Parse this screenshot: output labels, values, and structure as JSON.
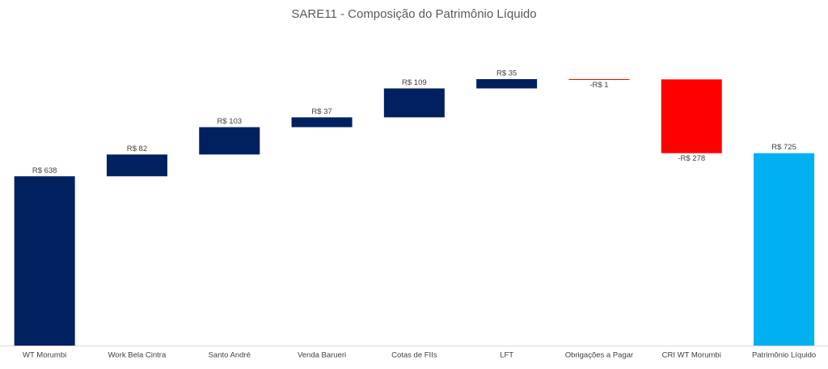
{
  "chart_data": {
    "type": "waterfall",
    "title": "SARE11 - Composição do Patrimônio Líquido",
    "categories": [
      "WT Morumbi",
      "Work Bela Cintra",
      "Santo André",
      "Venda Barueri",
      "Cotas de FIIs",
      "LFT",
      "Obrigações a Pagar",
      "CRI WT Morumbi",
      "Patrimônio Líquido"
    ],
    "values": [
      638,
      82,
      103,
      37,
      109,
      35,
      -1,
      -278,
      725
    ],
    "value_labels": [
      "R$ 638",
      "R$ 82",
      "R$ 103",
      "R$ 37",
      "R$ 109",
      "R$ 35",
      "-R$ 1",
      "-R$ 278",
      "R$ 725"
    ],
    "totals": [
      false,
      false,
      false,
      false,
      false,
      false,
      false,
      false,
      true
    ],
    "colors": {
      "increase": "#002060",
      "decrease": "#ff0000",
      "total": "#00b0f0"
    }
  }
}
